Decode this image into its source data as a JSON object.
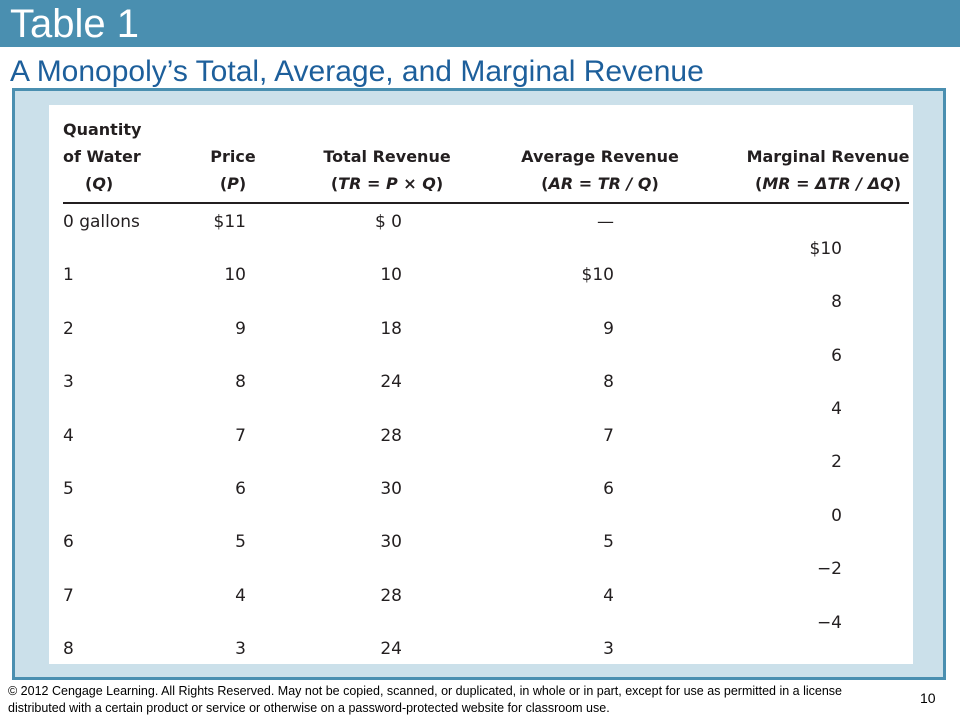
{
  "slide": {
    "title": "Table 1",
    "subtitle": "A Monopoly’s Total, Average, and Marginal Revenue",
    "page_number": "10",
    "footer": "© 2012 Cengage Learning. All Rights Reserved. May not be copied, scanned, or duplicated, in whole or in part, except for use as permitted in a license distributed with a certain product or service or otherwise on a password-protected website for classroom use."
  },
  "table": {
    "headers": {
      "quantity": {
        "line1": "Quantity",
        "line2": "of Water",
        "open": "(",
        "symbol": "Q",
        "close": ")"
      },
      "price": {
        "line1": "Price",
        "open": "(",
        "symbol": "P",
        "close": ")"
      },
      "total_revenue": {
        "line1": "Total Revenue",
        "open": "(",
        "formula": "TR = P × Q",
        "close": ")"
      },
      "average_revenue": {
        "line1": "Average Revenue",
        "open": "(",
        "formula": "AR = TR / Q",
        "close": ")"
      },
      "marginal_revenue": {
        "line1": "Marginal Revenue",
        "open": "(",
        "formula": "MR = ΔTR / ΔQ",
        "close": ")"
      }
    },
    "rows": [
      {
        "quantity": "0 gallons",
        "price": "$11",
        "total_revenue": "$ 0",
        "average_revenue": "—"
      },
      {
        "quantity": "1",
        "price": "10",
        "total_revenue": "10",
        "average_revenue": "$10"
      },
      {
        "quantity": "2",
        "price": "9",
        "total_revenue": "18",
        "average_revenue": "9"
      },
      {
        "quantity": "3",
        "price": "8",
        "total_revenue": "24",
        "average_revenue": "8"
      },
      {
        "quantity": "4",
        "price": "7",
        "total_revenue": "28",
        "average_revenue": "7"
      },
      {
        "quantity": "5",
        "price": "6",
        "total_revenue": "30",
        "average_revenue": "6"
      },
      {
        "quantity": "6",
        "price": "5",
        "total_revenue": "30",
        "average_revenue": "5"
      },
      {
        "quantity": "7",
        "price": "4",
        "total_revenue": "28",
        "average_revenue": "4"
      },
      {
        "quantity": "8",
        "price": "3",
        "total_revenue": "24",
        "average_revenue": "3"
      }
    ],
    "marginal_revenue": [
      "$10",
      "8",
      "6",
      "4",
      "2",
      "0",
      "−2",
      "−4"
    ]
  }
}
